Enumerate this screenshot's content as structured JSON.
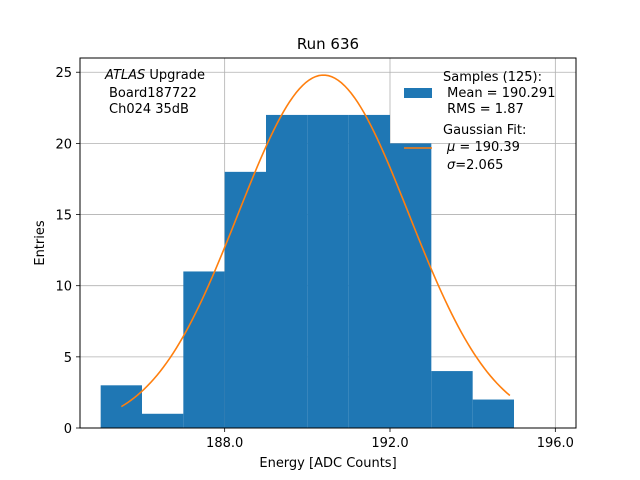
{
  "chart_data": {
    "type": "bar",
    "title": "Run 636",
    "xlabel": "Energy [ADC Counts]",
    "ylabel": "Entries",
    "xlim": [
      184.5,
      196.5
    ],
    "ylim": [
      0,
      26
    ],
    "grid": true,
    "bin_width": 1,
    "bins": [
      {
        "left": 185,
        "count": 3
      },
      {
        "left": 186,
        "count": 1
      },
      {
        "left": 187,
        "count": 11
      },
      {
        "left": 188,
        "count": 18
      },
      {
        "left": 189,
        "count": 22
      },
      {
        "left": 190,
        "count": 22
      },
      {
        "left": 191,
        "count": 22
      },
      {
        "left": 192,
        "count": 20
      },
      {
        "left": 193,
        "count": 4
      },
      {
        "left": 194,
        "count": 2
      }
    ],
    "x_ticks": [
      188,
      192,
      196
    ],
    "x_tick_labels": [
      "188.0",
      "192.0",
      "196.0"
    ],
    "y_ticks": [
      0,
      5,
      10,
      15,
      20,
      25
    ],
    "y_tick_labels": [
      "0",
      "5",
      "10",
      "15",
      "20",
      "25"
    ],
    "fit": {
      "type": "gaussian",
      "mu": 190.39,
      "sigma": 2.065,
      "amplitude": 24.8,
      "x_range": [
        185.5,
        194.9
      ]
    },
    "annotation": {
      "line1_italic": "ATLAS",
      "line1_rest": " Upgrade",
      "line2": "Board187722",
      "line3": "Ch024 35dB"
    },
    "legend": {
      "placement": "top-right",
      "hist_label": "Samples (125):",
      "hist_mean": " Mean = 190.291",
      "hist_rms": " RMS = 1.87",
      "fit_label": "Gaussian Fit:",
      "fit_mu_symbol": "μ",
      "fit_mu_text": " = 190.39",
      "fit_sigma_symbol": "σ",
      "fit_sigma_text": "=2.065"
    },
    "colors": {
      "bars": "#1f77b4",
      "fit_line": "#ff7f0e",
      "grid": "#b0b0b0"
    }
  }
}
